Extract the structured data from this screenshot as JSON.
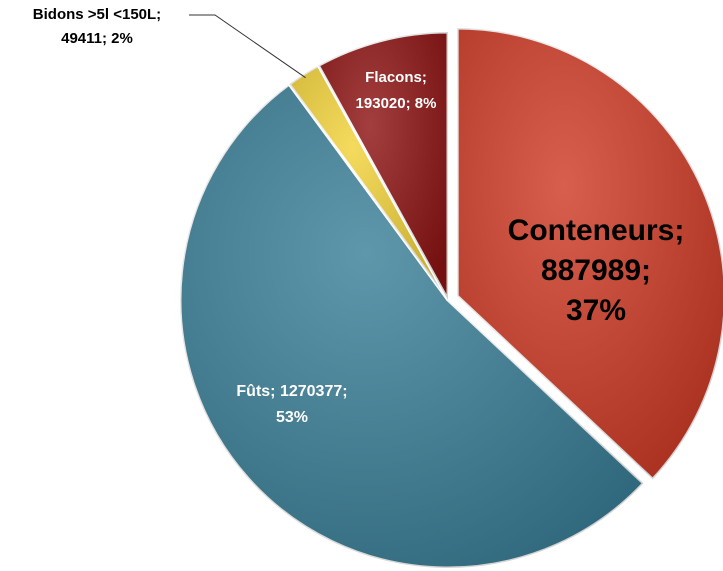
{
  "chart_data": {
    "type": "pie",
    "labels": [
      [
        "Conteneurs;",
        "887989;",
        "37%"
      ],
      [
        "Fûts; 1270377;",
        "53%"
      ],
      [
        "Bidons >5l <150L;",
        "49411; 2%"
      ],
      [
        "Flacons;",
        "193020; 8%"
      ]
    ],
    "values": [
      887989,
      1270377,
      49411,
      193020
    ],
    "colors": [
      "#cf3b26",
      "#3b7f98",
      "#f2d23a",
      "#8e1414"
    ],
    "start_angle": 0,
    "direction": "clockwise"
  }
}
